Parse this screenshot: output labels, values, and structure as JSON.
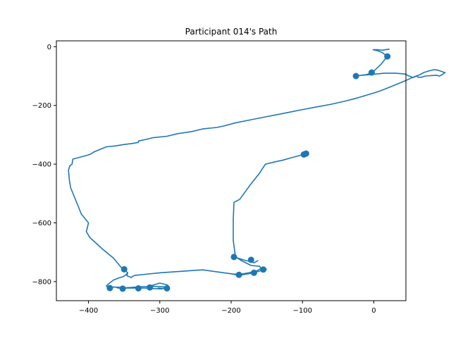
{
  "chart_data": {
    "type": "line",
    "title": "Participant 014's Path",
    "xlabel": "",
    "ylabel": "",
    "xlim": [
      -445,
      45
    ],
    "ylim": [
      -865,
      20
    ],
    "xticks": [
      -400,
      -300,
      -200,
      -100,
      0
    ],
    "yticks": [
      0,
      -200,
      -400,
      -600,
      -800
    ],
    "xtick_labels": [
      "−400",
      "−300",
      "−200",
      "−100",
      "0"
    ],
    "ytick_labels": [
      "0",
      "−200",
      "−400",
      "−600",
      "−800"
    ],
    "grid": false,
    "color": "#1f77b4",
    "series": [
      {
        "path": [
          [
            -95,
            -363
          ],
          [
            -98,
            -368
          ],
          [
            -103,
            -370
          ],
          [
            -117,
            -379
          ],
          [
            -127,
            -386
          ],
          [
            -140,
            -393
          ],
          [
            -152,
            -400
          ],
          [
            -160,
            -430
          ],
          [
            -173,
            -470
          ],
          [
            -188,
            -520
          ],
          [
            -196,
            -530
          ],
          [
            -197,
            -590
          ],
          [
            -197,
            -660
          ],
          [
            -194,
            -715
          ],
          [
            -186,
            -728
          ],
          [
            -178,
            -738
          ],
          [
            -172,
            -745
          ],
          [
            -160,
            -748
          ],
          [
            -158,
            -755
          ],
          [
            -163,
            -762
          ],
          [
            -175,
            -770
          ],
          [
            -188,
            -775
          ],
          [
            -198,
            -774
          ],
          [
            -210,
            -770
          ],
          [
            -240,
            -760
          ],
          [
            -270,
            -765
          ],
          [
            -300,
            -770
          ],
          [
            -320,
            -775
          ],
          [
            -335,
            -779
          ],
          [
            -338,
            -782
          ],
          [
            -340,
            -786
          ],
          [
            -346,
            -780
          ],
          [
            -345,
            -770
          ],
          [
            -350,
            -758
          ],
          [
            -354,
            -752
          ],
          [
            -365,
            -720
          ],
          [
            -380,
            -690
          ],
          [
            -398,
            -650
          ],
          [
            -403,
            -630
          ],
          [
            -400,
            -600
          ],
          [
            -405,
            -585
          ],
          [
            -410,
            -570
          ],
          [
            -415,
            -540
          ],
          [
            -420,
            -510
          ],
          [
            -425,
            -480
          ],
          [
            -427,
            -450
          ],
          [
            -428,
            -420
          ],
          [
            -426,
            -405
          ],
          [
            -423,
            -400
          ],
          [
            -422,
            -383
          ],
          [
            -405,
            -372
          ],
          [
            -398,
            -367
          ],
          [
            -392,
            -358
          ],
          [
            -386,
            -352
          ],
          [
            -380,
            -346
          ],
          [
            -375,
            -341
          ],
          [
            -363,
            -338
          ],
          [
            -350,
            -333
          ],
          [
            -340,
            -330
          ],
          [
            -330,
            -326
          ],
          [
            -330,
            -321
          ],
          [
            -328,
            -320
          ],
          [
            -320,
            -316
          ],
          [
            -310,
            -310
          ],
          [
            -290,
            -305
          ],
          [
            -275,
            -296
          ],
          [
            -255,
            -289
          ],
          [
            -240,
            -280
          ],
          [
            -220,
            -275
          ],
          [
            -210,
            -270
          ],
          [
            -195,
            -260
          ],
          [
            -175,
            -250
          ],
          [
            -150,
            -238
          ],
          [
            -120,
            -224
          ],
          [
            -100,
            -214
          ],
          [
            -80,
            -205
          ],
          [
            -60,
            -196
          ],
          [
            -40,
            -185
          ],
          [
            -25,
            -176
          ],
          [
            -10,
            -165
          ],
          [
            5,
            -154
          ],
          [
            15,
            -145
          ],
          [
            25,
            -135
          ],
          [
            35,
            -125
          ],
          [
            45,
            -115
          ],
          [
            55,
            -104
          ],
          [
            65,
            -95
          ],
          [
            70,
            -88
          ],
          [
            78,
            -82
          ],
          [
            85,
            -78
          ],
          [
            90,
            -80
          ],
          [
            96,
            -85
          ],
          [
            98,
            -87
          ],
          [
            100,
            -88
          ],
          [
            96,
            -95
          ],
          [
            92,
            -100
          ],
          [
            90,
            -99
          ],
          [
            88,
            -97
          ],
          [
            72,
            -100
          ],
          [
            67,
            -104
          ],
          [
            62,
            -104
          ],
          [
            60,
            -100
          ],
          [
            58,
            -102
          ],
          [
            55,
            -105
          ],
          [
            48,
            -98
          ],
          [
            46,
            -96
          ],
          [
            44,
            -93
          ],
          [
            30,
            -90
          ],
          [
            15,
            -90
          ],
          [
            -5,
            -95
          ],
          [
            -20,
            -98
          ],
          [
            -23,
            -100
          ],
          [
            -20,
            -98
          ],
          [
            -10,
            -95
          ],
          [
            -3,
            -89
          ],
          [
            -1,
            -86
          ],
          [
            0,
            -83
          ],
          [
            10,
            -60
          ],
          [
            14,
            -48
          ],
          [
            18,
            -35
          ],
          [
            17,
            -30
          ],
          [
            12,
            -20
          ],
          [
            6,
            -14
          ],
          [
            2,
            -12
          ],
          [
            -1,
            -10
          ],
          [
            4,
            -10
          ],
          [
            12,
            -12
          ],
          [
            22,
            -8
          ]
        ],
        "paths_extra": [
          [
            [
              -194,
              -718
            ],
            [
              -188,
              -722
            ],
            [
              -180,
              -728
            ],
            [
              -172,
              -732
            ],
            [
              -168,
              -736
            ],
            [
              -165,
              -732
            ],
            [
              -162,
              -728
            ]
          ],
          [
            [
              -200,
              -773
            ],
            [
              -195,
              -776
            ],
            [
              -190,
              -779
            ],
            [
              -180,
              -775
            ],
            [
              -168,
              -770
            ],
            [
              -160,
              -764
            ],
            [
              -155,
              -760
            ],
            [
              -150,
              -757
            ]
          ],
          [
            [
              -345,
              -770
            ],
            [
              -348,
              -778
            ],
            [
              -352,
              -784
            ],
            [
              -356,
              -786
            ],
            [
              -365,
              -795
            ],
            [
              -372,
              -808
            ],
            [
              -375,
              -815
            ],
            [
              -373,
              -818
            ],
            [
              -360,
              -819
            ],
            [
              -348,
              -821
            ],
            [
              -340,
              -820
            ],
            [
              -330,
              -818
            ],
            [
              -320,
              -817
            ],
            [
              -310,
              -816
            ],
            [
              -300,
              -817
            ],
            [
              -292,
              -818
            ],
            [
              -288,
              -819
            ],
            [
              -292,
              -822
            ],
            [
              -298,
              -825
            ],
            [
              -305,
              -824
            ],
            [
              -310,
              -824
            ],
            [
              -320,
              -822
            ],
            [
              -330,
              -822
            ],
            [
              -340,
              -822
            ],
            [
              -350,
              -822
            ],
            [
              -356,
              -821
            ],
            [
              -360,
              -821
            ],
            [
              -355,
              -823
            ],
            [
              -350,
              -824
            ],
            [
              -347,
              -822
            ]
          ],
          [
            [
              -315,
              -816
            ],
            [
              -300,
              -805
            ],
            [
              -290,
              -811
            ],
            [
              -287,
              -817
            ],
            [
              -295,
              -823
            ],
            [
              -303,
              -822
            ]
          ]
        ],
        "markers": [
          [
            19,
            -33
          ],
          [
            -3,
            -88
          ],
          [
            -25,
            -100
          ],
          [
            -95,
            -364
          ],
          [
            -98,
            -367
          ],
          [
            -196,
            -716
          ],
          [
            -172,
            -726
          ],
          [
            -155,
            -759
          ],
          [
            -168,
            -770
          ],
          [
            -189,
            -777
          ],
          [
            -350,
            -758
          ],
          [
            -370,
            -822
          ],
          [
            -352,
            -824
          ],
          [
            -330,
            -823
          ],
          [
            -314,
            -820
          ],
          [
            -290,
            -823
          ]
        ]
      }
    ]
  }
}
